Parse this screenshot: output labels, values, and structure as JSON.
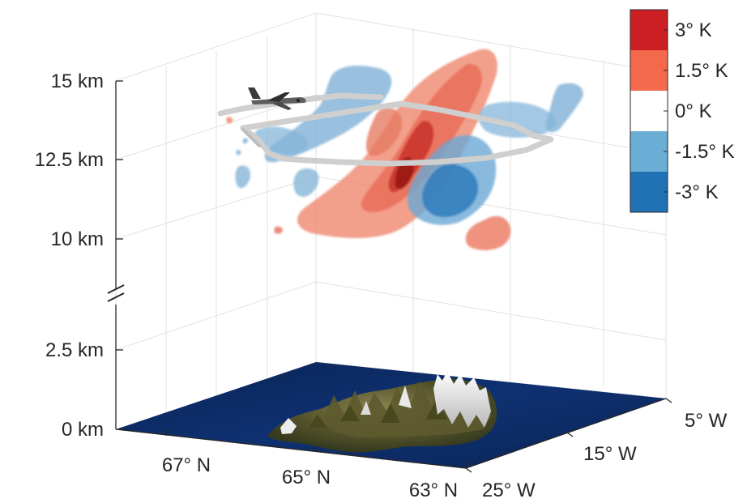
{
  "chart_data": {
    "type": "3d-isosurface",
    "title": "",
    "z_axis": {
      "ticks": [
        "0 km",
        "2.5 km",
        "10 km",
        "12.5 km",
        "15 km"
      ],
      "break": "between 2.5 km and 10 km"
    },
    "latitude_axis": {
      "ticks": [
        "67° N",
        "65° N",
        "63° N"
      ]
    },
    "longitude_axis": {
      "ticks": [
        "25° W",
        "15° W",
        "5° W"
      ]
    },
    "colorbar": {
      "entries": [
        {
          "label": "3° K",
          "color": "#cc1f24"
        },
        {
          "label": "1.5° K",
          "color": "#f4694b"
        },
        {
          "label": "0° K",
          "color": "#ffffff"
        },
        {
          "label": "-1.5° K",
          "color": "#6aaed6"
        },
        {
          "label": "-3° K",
          "color": "#2171b5"
        }
      ]
    },
    "elements": {
      "terrain": "Iceland topography",
      "flight_track": "aircraft flight path",
      "aircraft": "aircraft-icon"
    },
    "grid": true,
    "legend_placement": "top-right"
  },
  "colors": {
    "warm_strong": "#cc1f24",
    "warm": "#f4694b",
    "cold": "#6aaed6",
    "cold_strong": "#2171b5",
    "ocean": "#0d2c66",
    "flight_track": "#cfcfcf",
    "axis": "#262626",
    "grid": "#dedede"
  }
}
